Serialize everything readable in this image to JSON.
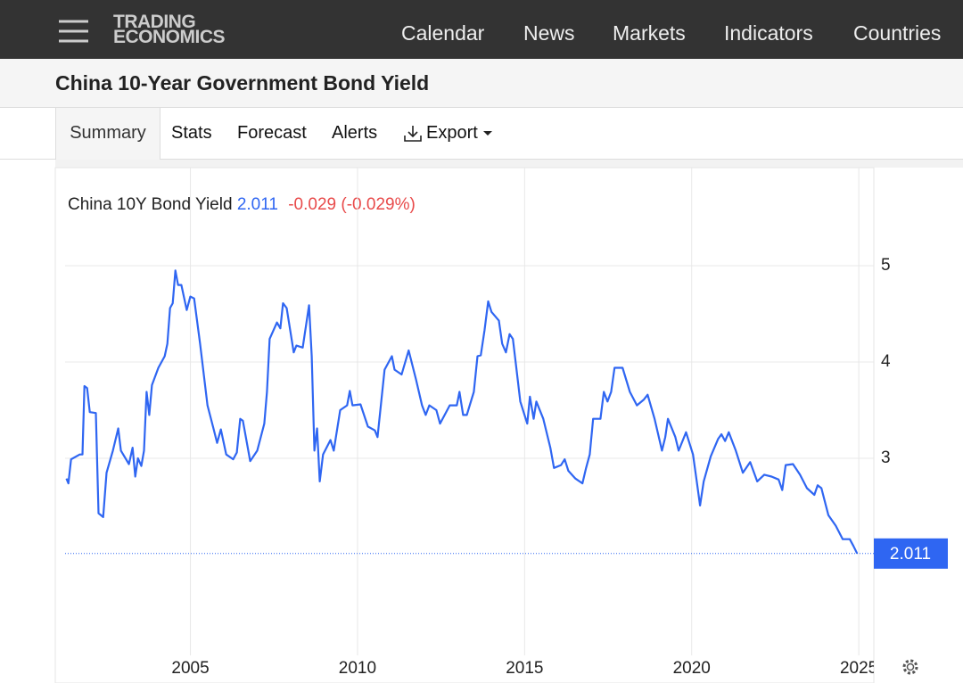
{
  "header": {
    "logo": [
      "TRADING",
      "ECONOMICS"
    ],
    "nav": [
      "Calendar",
      "News",
      "Markets",
      "Indicators",
      "Countries"
    ]
  },
  "page_title": "China 10-Year Government Bond Yield",
  "tabs": [
    "Summary",
    "Stats",
    "Forecast",
    "Alerts",
    "Export"
  ],
  "chart_data": {
    "type": "line",
    "series": [
      {
        "name": "China 10Y Bond Yield",
        "color": "#2f66f2",
        "x": [
          2001.29,
          2001.35,
          2001.43,
          2001.69,
          2001.77,
          2001.83,
          2001.91,
          2001.99,
          2002.17,
          2002.25,
          2002.39,
          2002.49,
          2002.68,
          2002.84,
          2002.92,
          2003.16,
          2003.27,
          2003.35,
          2003.43,
          2003.53,
          2003.61,
          2003.69,
          2003.77,
          2003.85,
          2004.04,
          2004.23,
          2004.31,
          2004.39,
          2004.47,
          2004.55,
          2004.63,
          2004.73,
          2004.89,
          2005.0,
          2005.11,
          2005.29,
          2005.51,
          2005.69,
          2005.8,
          2005.91,
          2006.07,
          2006.28,
          2006.39,
          2006.49,
          2006.57,
          2006.79,
          2007.0,
          2007.21,
          2007.29,
          2007.37,
          2007.59,
          2007.69,
          2007.77,
          2007.88,
          2008.09,
          2008.17,
          2008.36,
          2008.55,
          2008.63,
          2008.71,
          2008.79,
          2008.87,
          2008.97,
          2009.19,
          2009.29,
          2009.48,
          2009.69,
          2009.77,
          2009.85,
          2010.09,
          2010.31,
          2010.52,
          2010.6,
          2010.81,
          2011.03,
          2011.11,
          2011.32,
          2011.53,
          2011.75,
          2011.93,
          2012.04,
          2012.15,
          2012.36,
          2012.47,
          2012.76,
          2012.97,
          2013.05,
          2013.16,
          2013.27,
          2013.48,
          2013.59,
          2013.69,
          2013.8,
          2013.91,
          2014.01,
          2014.23,
          2014.33,
          2014.44,
          2014.55,
          2014.65,
          2014.76,
          2014.87,
          2015.08,
          2015.16,
          2015.27,
          2015.35,
          2015.56,
          2015.77,
          2015.88,
          2016.09,
          2016.2,
          2016.31,
          2016.52,
          2016.73,
          2016.84,
          2016.95,
          2017.05,
          2017.27,
          2017.37,
          2017.48,
          2017.59,
          2017.69,
          2017.93,
          2018.15,
          2018.36,
          2018.57,
          2018.68,
          2018.89,
          2019.11,
          2019.21,
          2019.29,
          2019.51,
          2019.61,
          2019.83,
          2020.04,
          2020.15,
          2020.25,
          2020.36,
          2020.57,
          2020.79,
          2020.89,
          2021.0,
          2021.11,
          2021.32,
          2021.53,
          2021.75,
          2021.96,
          2022.17,
          2022.39,
          2022.6,
          2022.71,
          2022.81,
          2023.03,
          2023.24,
          2023.45,
          2023.67,
          2023.77,
          2023.88,
          2024.09,
          2024.31,
          2024.52,
          2024.73,
          2024.84,
          2024.95
        ],
        "values": [
          2.79,
          2.74,
          2.99,
          3.04,
          3.04,
          3.75,
          3.73,
          3.48,
          3.47,
          2.43,
          2.39,
          2.85,
          3.08,
          3.31,
          3.08,
          2.94,
          3.11,
          2.81,
          3.0,
          2.92,
          3.08,
          3.69,
          3.45,
          3.76,
          3.94,
          4.06,
          4.19,
          4.56,
          4.61,
          4.95,
          4.8,
          4.8,
          4.54,
          4.68,
          4.66,
          4.19,
          3.55,
          3.31,
          3.16,
          3.3,
          3.04,
          2.99,
          3.06,
          3.41,
          3.39,
          2.97,
          3.08,
          3.36,
          3.69,
          4.24,
          4.41,
          4.35,
          4.61,
          4.56,
          4.1,
          4.17,
          4.15,
          4.59,
          4.06,
          3.08,
          3.31,
          2.76,
          3.04,
          3.19,
          3.08,
          3.5,
          3.55,
          3.7,
          3.55,
          3.56,
          3.33,
          3.29,
          3.22,
          3.92,
          4.06,
          3.92,
          3.87,
          4.12,
          3.82,
          3.55,
          3.45,
          3.55,
          3.5,
          3.36,
          3.55,
          3.55,
          3.69,
          3.45,
          3.45,
          3.69,
          4.06,
          4.07,
          4.33,
          4.63,
          4.52,
          4.43,
          4.19,
          4.1,
          4.29,
          4.24,
          3.92,
          3.59,
          3.36,
          3.64,
          3.41,
          3.59,
          3.41,
          3.11,
          2.9,
          2.93,
          2.99,
          2.87,
          2.79,
          2.74,
          2.9,
          3.04,
          3.41,
          3.41,
          3.69,
          3.59,
          3.69,
          3.94,
          3.94,
          3.69,
          3.55,
          3.61,
          3.66,
          3.41,
          3.08,
          3.22,
          3.41,
          3.22,
          3.08,
          3.27,
          3.04,
          2.76,
          2.51,
          2.76,
          3.02,
          3.2,
          3.25,
          3.18,
          3.27,
          3.08,
          2.85,
          2.96,
          2.76,
          2.83,
          2.81,
          2.78,
          2.67,
          2.93,
          2.94,
          2.83,
          2.69,
          2.62,
          2.72,
          2.69,
          2.41,
          2.3,
          2.16,
          2.16,
          2.09,
          2.011
        ]
      }
    ],
    "last_value": 2.011,
    "change": -0.029,
    "change_pct": {
      "value": -0.029,
      "label": "(-0.029%)"
    },
    "xlim": [
      2001.25,
      2025.45
    ],
    "xticks": [
      2005,
      2010,
      2015,
      2020,
      2025
    ],
    "ylim": [
      1,
      6
    ],
    "yticks": [
      3,
      4,
      5
    ],
    "grid": true
  }
}
